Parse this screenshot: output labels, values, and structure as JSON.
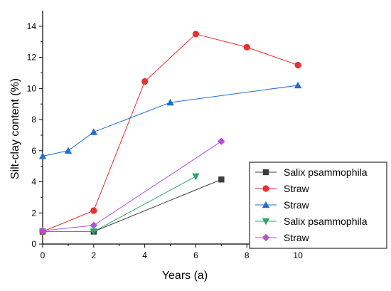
{
  "chart_data": {
    "type": "line",
    "title": "",
    "xlabel": "Years (a)",
    "ylabel": "Silt-clay content (%)",
    "xlim": [
      0,
      11
    ],
    "ylim": [
      0,
      15
    ],
    "xticks": [
      0,
      2,
      4,
      6,
      8,
      10
    ],
    "yticks": [
      0,
      2,
      4,
      6,
      8,
      10,
      12,
      14
    ],
    "grid": false,
    "legend_position": "bottom-right",
    "series": [
      {
        "name": "Salix psammophila",
        "color": "#3c3c3c",
        "marker": "square",
        "x": [
          0,
          2,
          7
        ],
        "y": [
          0.8,
          0.8,
          4.15
        ]
      },
      {
        "name": "Straw",
        "color": "#e8302f",
        "marker": "circle",
        "x": [
          0,
          2,
          4,
          6,
          8,
          10
        ],
        "y": [
          0.8,
          2.15,
          10.45,
          13.5,
          12.65,
          11.5
        ]
      },
      {
        "name": "Straw",
        "color": "#1f6fd1",
        "marker": "triangle-up",
        "x": [
          0,
          1,
          2,
          5,
          10
        ],
        "y": [
          5.65,
          6.0,
          7.2,
          9.1,
          10.2
        ]
      },
      {
        "name": "Salix psammophila",
        "color": "#2aa56a",
        "marker": "triangle-down",
        "x": [
          0,
          2,
          6
        ],
        "y": [
          0.8,
          0.8,
          4.35
        ]
      },
      {
        "name": "Straw",
        "color": "#b44fe0",
        "marker": "diamond",
        "x": [
          0,
          2,
          7
        ],
        "y": [
          0.85,
          1.2,
          6.6
        ]
      }
    ]
  }
}
